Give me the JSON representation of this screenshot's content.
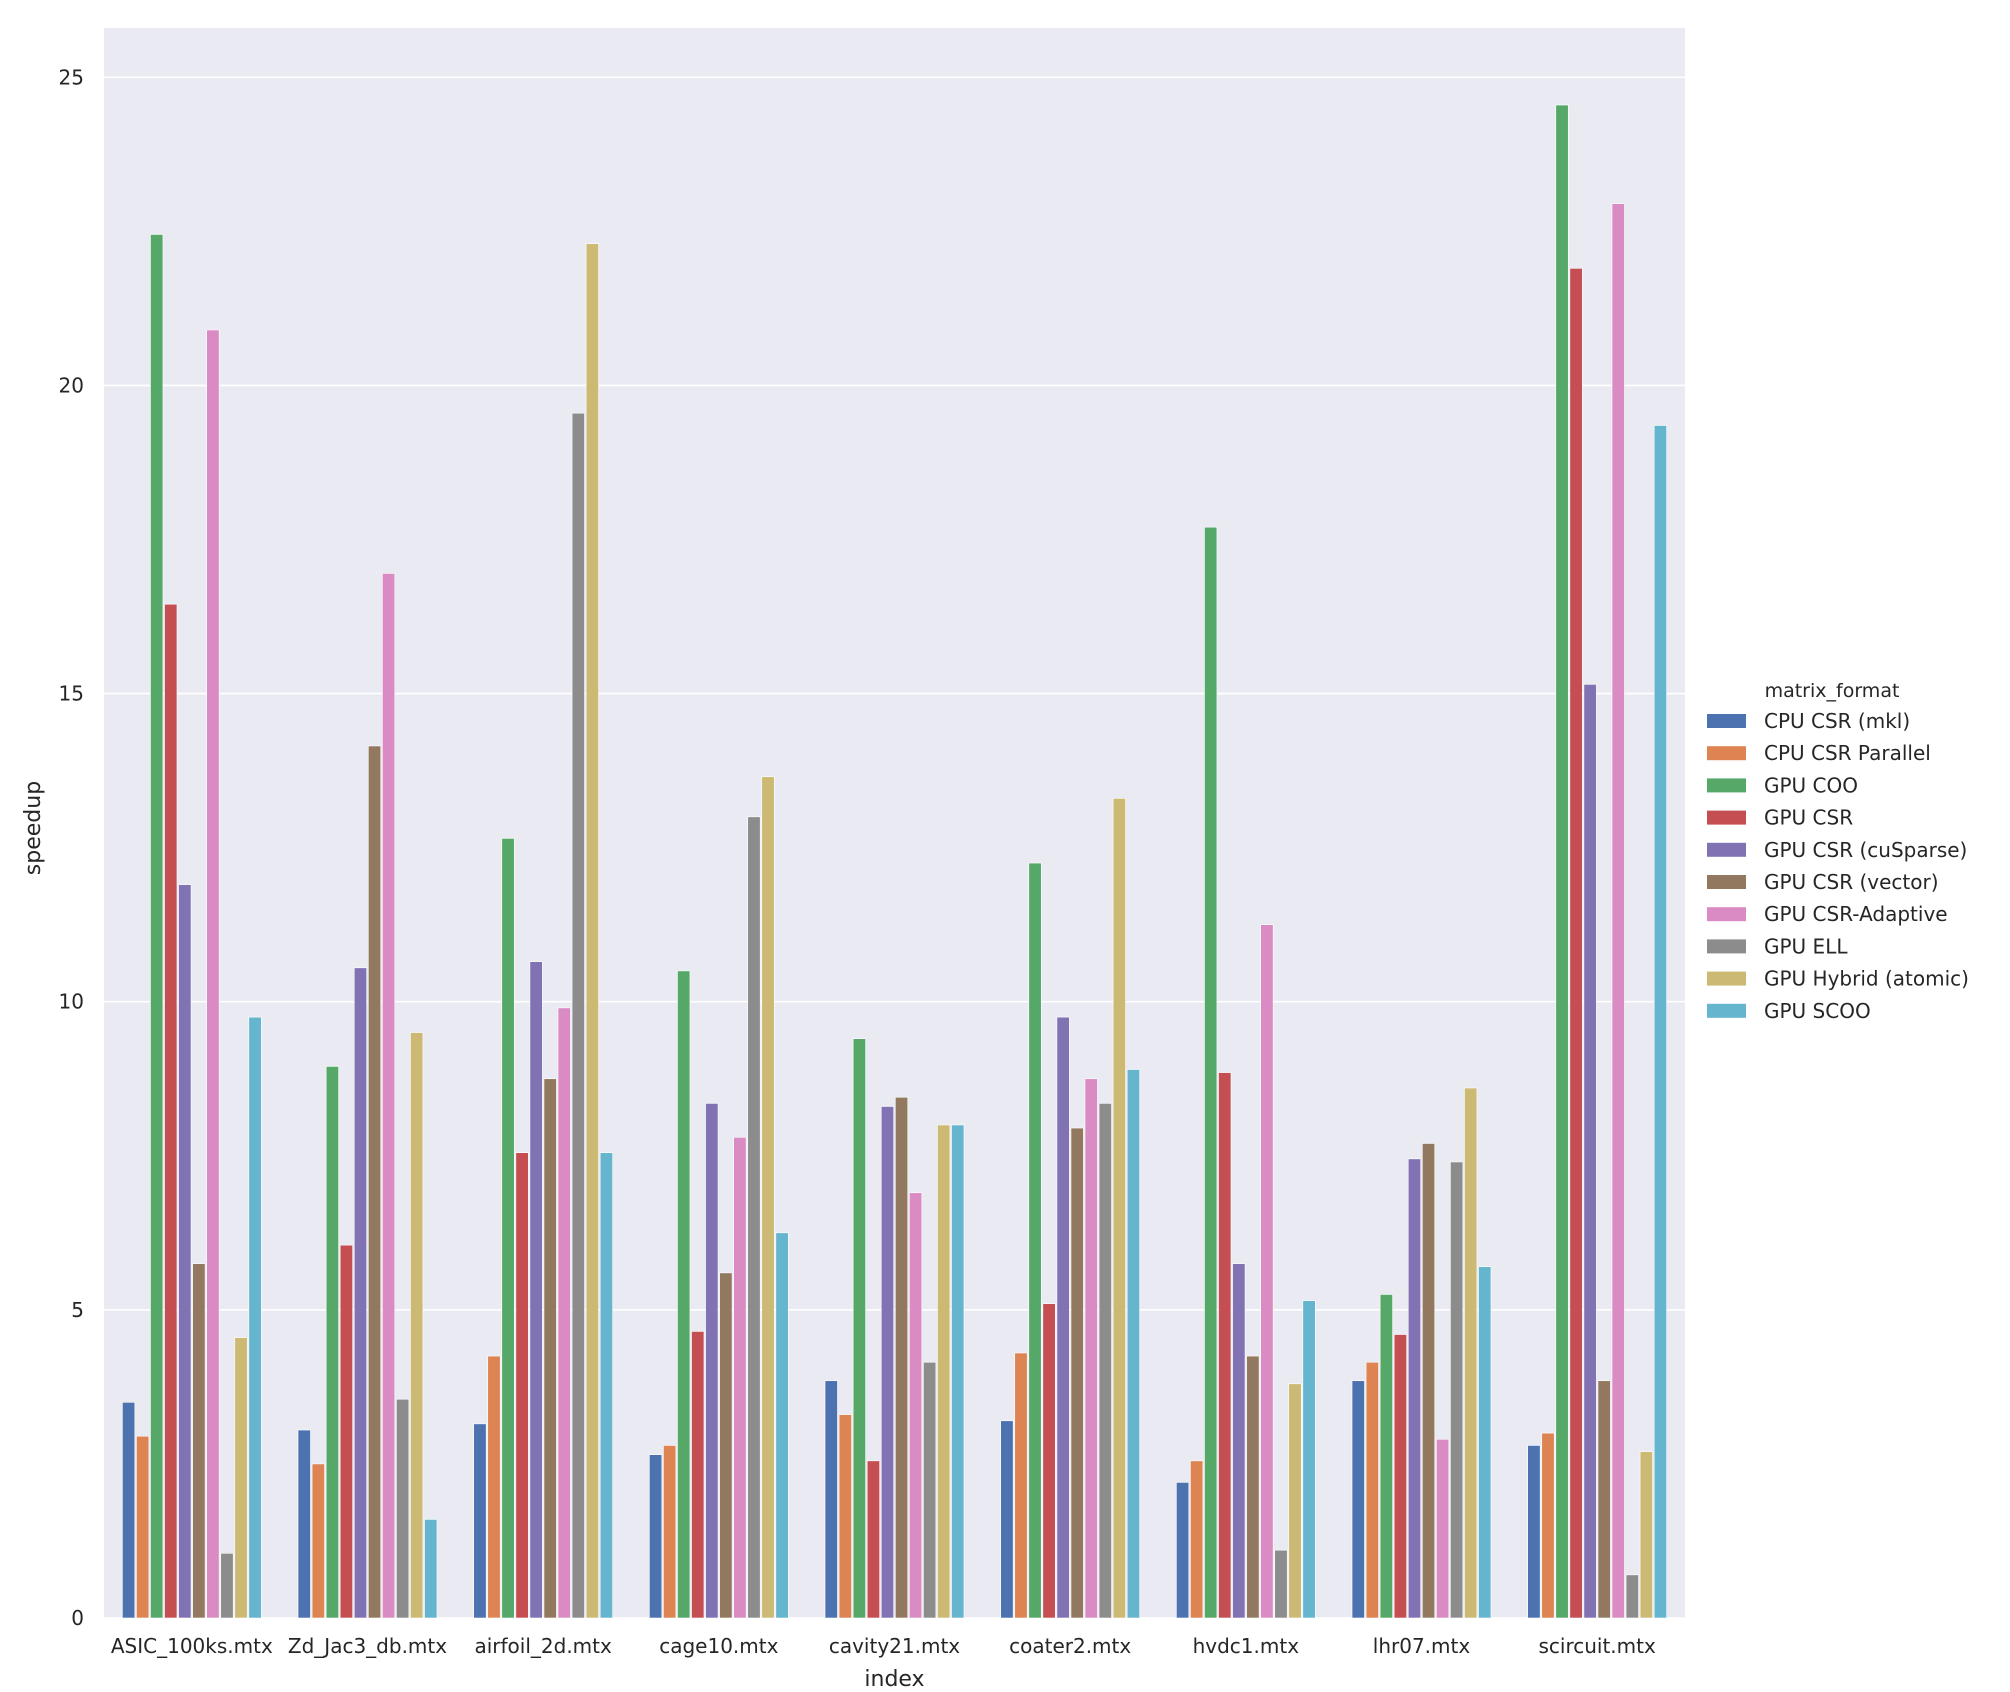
{
  "chart_data": {
    "type": "bar",
    "xlabel": "index",
    "ylabel": "speedup",
    "ylim": [
      0,
      25.8
    ],
    "yticks": [
      0,
      5,
      10,
      15,
      20,
      25
    ],
    "grid": true,
    "legend_title": "matrix_format",
    "legend_position": "right",
    "categories": [
      "ASIC_100ks.mtx",
      "Zd_Jac3_db.mtx",
      "airfoil_2d.mtx",
      "cage10.mtx",
      "cavity21.mtx",
      "coater2.mtx",
      "hvdc1.mtx",
      "lhr07.mtx",
      "scircuit.mtx"
    ],
    "series": [
      {
        "name": "CPU CSR (mkl)",
        "color": "#4c72b0",
        "values": [
          3.5,
          3.05,
          3.15,
          2.65,
          3.85,
          3.2,
          2.2,
          3.85,
          2.8
        ]
      },
      {
        "name": "CPU CSR Parallel",
        "color": "#dd8452",
        "values": [
          2.95,
          2.5,
          4.25,
          2.8,
          3.3,
          4.3,
          2.55,
          4.15,
          3.0
        ]
      },
      {
        "name": "GPU COO",
        "color": "#55a868",
        "values": [
          22.45,
          8.95,
          12.65,
          10.5,
          9.4,
          12.25,
          17.7,
          5.25,
          24.55
        ]
      },
      {
        "name": "GPU CSR",
        "color": "#c44e52",
        "values": [
          16.45,
          6.05,
          7.55,
          4.65,
          2.55,
          5.1,
          8.85,
          4.6,
          21.9
        ]
      },
      {
        "name": "GPU CSR (cuSparse)",
        "color": "#8172b3",
        "values": [
          11.9,
          10.55,
          10.65,
          8.35,
          8.3,
          9.75,
          5.75,
          7.45,
          15.15
        ]
      },
      {
        "name": "GPU CSR (vector)",
        "color": "#937860",
        "values": [
          5.75,
          14.15,
          8.75,
          5.6,
          8.45,
          7.95,
          4.25,
          7.7,
          3.85
        ]
      },
      {
        "name": "GPU CSR-Adaptive",
        "color": "#da8bc3",
        "values": [
          20.9,
          16.95,
          9.9,
          7.8,
          6.9,
          8.75,
          11.25,
          2.9,
          22.95
        ]
      },
      {
        "name": "GPU ELL",
        "color": "#8c8c8c",
        "values": [
          1.05,
          3.55,
          19.55,
          13.0,
          4.15,
          8.35,
          1.1,
          7.4,
          0.7
        ]
      },
      {
        "name": "GPU Hybrid (atomic)",
        "color": "#ccb974",
        "values": [
          4.55,
          9.5,
          22.3,
          13.65,
          8.0,
          13.3,
          3.8,
          8.6,
          2.7
        ]
      },
      {
        "name": "GPU SCOO",
        "color": "#64b5cd",
        "values": [
          9.75,
          1.6,
          7.55,
          6.25,
          8.0,
          8.9,
          5.15,
          5.7,
          19.35
        ]
      }
    ]
  }
}
